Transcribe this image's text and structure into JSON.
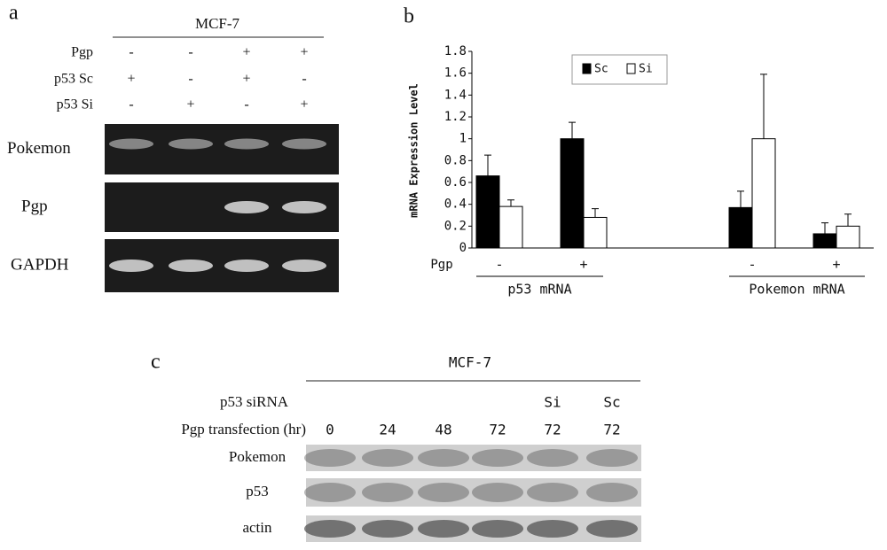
{
  "panel_a": {
    "label": "a",
    "cell_line": "MCF-7",
    "rows": [
      {
        "name": "Pgp",
        "marks": [
          "-",
          "-",
          "+",
          "+"
        ]
      },
      {
        "name": "p53 Sc",
        "marks": [
          "+",
          "-",
          "+",
          "-"
        ]
      },
      {
        "name": "p53 Si",
        "marks": [
          "-",
          "+",
          "-",
          "+"
        ]
      }
    ],
    "blots": [
      "Pokemon",
      "Pgp",
      "GAPDH"
    ]
  },
  "chart_data": {
    "type": "bar",
    "panel_label": "b",
    "y_label": "mRNA Expression Level",
    "x_row_label": "Pgp",
    "categories": [
      "-",
      "+",
      "-",
      "+"
    ],
    "groups": [
      "p53 mRNA",
      "Pokemon mRNA"
    ],
    "series": [
      {
        "name": "Sc",
        "color": "#000000",
        "values": [
          0.66,
          1.0,
          0.37,
          0.13
        ],
        "errors": [
          0.19,
          0.15,
          0.15,
          0.1
        ]
      },
      {
        "name": "Si",
        "color": "#ffffff",
        "values": [
          0.38,
          0.28,
          1.0,
          0.2
        ],
        "errors": [
          0.06,
          0.08,
          0.59,
          0.11
        ]
      }
    ],
    "ylim": [
      0,
      1.8
    ],
    "yticks": [
      0,
      0.2,
      0.4,
      0.6,
      0.8,
      1,
      1.2,
      1.4,
      1.6,
      1.8
    ]
  },
  "panel_c": {
    "label": "c",
    "cell_line": "MCF-7",
    "sirna_label": "p53 siRNA",
    "sirna": [
      "Si",
      "Sc"
    ],
    "time_label": "Pgp transfection (hr)",
    "times": [
      "0",
      "24",
      "48",
      "72",
      "72",
      "72"
    ],
    "blots": [
      "Pokemon",
      "p53",
      "actin"
    ]
  }
}
